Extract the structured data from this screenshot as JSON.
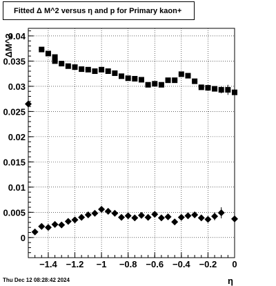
{
  "chart_data": {
    "type": "scatter",
    "title": "Fitted Δ M^2 versus η and p for Primary kaon+",
    "xlabel": "η",
    "ylabel": "ΔM^2",
    "xlim": [
      -1.55,
      0.0
    ],
    "ylim": [
      -0.004,
      0.0415
    ],
    "x_ticks": [
      "−1.4",
      "−1.2",
      "−1",
      "−0.8",
      "−0.6",
      "−0.4",
      "−0.2",
      "0"
    ],
    "x_tick_values": [
      -1.4,
      -1.2,
      -1.0,
      -0.8,
      -0.6,
      -0.4,
      -0.2,
      0.0
    ],
    "y_ticks": [
      "0",
      "0.005",
      "0.01",
      "0.015",
      "0.02",
      "0.025",
      "0.03",
      "0.035",
      "0.04"
    ],
    "y_tick_values": [
      0,
      0.005,
      0.01,
      0.015,
      0.02,
      0.025,
      0.03,
      0.035,
      0.04
    ],
    "grid": true,
    "series": [
      {
        "marker": "square",
        "points": [
          {
            "x": -1.45,
            "y": 0.0373,
            "err": 0.0003
          },
          {
            "x": -1.35,
            "y": 0.035,
            "err": 0.0003
          },
          {
            "x": -1.4,
            "y": 0.0365,
            "err": 0.0003
          },
          {
            "x": -1.3,
            "y": 0.0345,
            "err": 0.0003
          },
          {
            "x": -1.35,
            "y": 0.0358,
            "err": 0.0003
          },
          {
            "x": -1.25,
            "y": 0.034,
            "err": 0.0003
          },
          {
            "x": -1.2,
            "y": 0.0338,
            "err": 0.0003
          },
          {
            "x": -1.15,
            "y": 0.0334,
            "err": 0.0003
          },
          {
            "x": -1.1,
            "y": 0.0333,
            "err": 0.0003
          },
          {
            "x": -1.05,
            "y": 0.033,
            "err": 0.0003
          },
          {
            "x": -1.0,
            "y": 0.0333,
            "err": 0.0003
          },
          {
            "x": -0.95,
            "y": 0.033,
            "err": 0.0003
          },
          {
            "x": -0.9,
            "y": 0.0326,
            "err": 0.0003
          },
          {
            "x": -0.85,
            "y": 0.032,
            "err": 0.0003
          },
          {
            "x": -0.8,
            "y": 0.0316,
            "err": 0.0003
          },
          {
            "x": -0.75,
            "y": 0.0315,
            "err": 0.0003
          },
          {
            "x": -0.7,
            "y": 0.0313,
            "err": 0.0003
          },
          {
            "x": -0.65,
            "y": 0.0303,
            "err": 0.0003
          },
          {
            "x": -0.6,
            "y": 0.0305,
            "err": 0.0003
          },
          {
            "x": -0.55,
            "y": 0.0303,
            "err": 0.0003
          },
          {
            "x": -0.5,
            "y": 0.0312,
            "err": 0.0003
          },
          {
            "x": -0.45,
            "y": 0.0312,
            "err": 0.0003
          },
          {
            "x": -0.4,
            "y": 0.0324,
            "err": 0.0004
          },
          {
            "x": -0.35,
            "y": 0.0321,
            "err": 0.0004
          },
          {
            "x": -0.3,
            "y": 0.031,
            "err": 0.0004
          },
          {
            "x": -0.25,
            "y": 0.0298,
            "err": 0.0004
          },
          {
            "x": -0.2,
            "y": 0.0297,
            "err": 0.0004
          },
          {
            "x": -0.15,
            "y": 0.0295,
            "err": 0.0005
          },
          {
            "x": -0.1,
            "y": 0.0293,
            "err": 0.0007
          },
          {
            "x": -0.05,
            "y": 0.0293,
            "err": 0.001
          },
          {
            "x": 0.0,
            "y": 0.0288,
            "err": 0.0015
          }
        ]
      },
      {
        "marker": "diamond",
        "points": [
          {
            "x": -1.55,
            "y": 0.0265,
            "err": 0.0003
          },
          {
            "x": -1.5,
            "y": 0.0011,
            "err": 0.0003
          },
          {
            "x": -1.45,
            "y": 0.0022,
            "err": 0.0003
          },
          {
            "x": -1.4,
            "y": 0.002,
            "err": 0.0003
          },
          {
            "x": -1.35,
            "y": 0.0026,
            "err": 0.0003
          },
          {
            "x": -1.3,
            "y": 0.0025,
            "err": 0.0003
          },
          {
            "x": -1.25,
            "y": 0.0032,
            "err": 0.0003
          },
          {
            "x": -1.2,
            "y": 0.0035,
            "err": 0.0003
          },
          {
            "x": -1.15,
            "y": 0.004,
            "err": 0.0003
          },
          {
            "x": -1.1,
            "y": 0.0045,
            "err": 0.0003
          },
          {
            "x": -1.05,
            "y": 0.0048,
            "err": 0.0003
          },
          {
            "x": -1.0,
            "y": 0.0056,
            "err": 0.0003
          },
          {
            "x": -0.95,
            "y": 0.0052,
            "err": 0.0003
          },
          {
            "x": -0.9,
            "y": 0.0048,
            "err": 0.0003
          },
          {
            "x": -0.85,
            "y": 0.004,
            "err": 0.0003
          },
          {
            "x": -0.8,
            "y": 0.0043,
            "err": 0.0003
          },
          {
            "x": -0.75,
            "y": 0.0039,
            "err": 0.0003
          },
          {
            "x": -0.7,
            "y": 0.0044,
            "err": 0.0003
          },
          {
            "x": -0.65,
            "y": 0.004,
            "err": 0.0003
          },
          {
            "x": -0.6,
            "y": 0.0046,
            "err": 0.0003
          },
          {
            "x": -0.55,
            "y": 0.0039,
            "err": 0.0003
          },
          {
            "x": -0.5,
            "y": 0.0041,
            "err": 0.0003
          },
          {
            "x": -0.45,
            "y": 0.0031,
            "err": 0.0003
          },
          {
            "x": -0.4,
            "y": 0.004,
            "err": 0.0004
          },
          {
            "x": -0.35,
            "y": 0.0043,
            "err": 0.0004
          },
          {
            "x": -0.3,
            "y": 0.0045,
            "err": 0.0004
          },
          {
            "x": -0.25,
            "y": 0.0039,
            "err": 0.0005
          },
          {
            "x": -0.2,
            "y": 0.0036,
            "err": 0.0006
          },
          {
            "x": -0.15,
            "y": 0.0042,
            "err": 0.0008
          },
          {
            "x": -0.1,
            "y": 0.0049,
            "err": 0.0011
          },
          {
            "x": 0.0,
            "y": 0.0037,
            "err": 0.0018
          }
        ]
      }
    ]
  },
  "footer": {
    "timestamp": "Thu Dec 12 08:28:42 2024"
  }
}
